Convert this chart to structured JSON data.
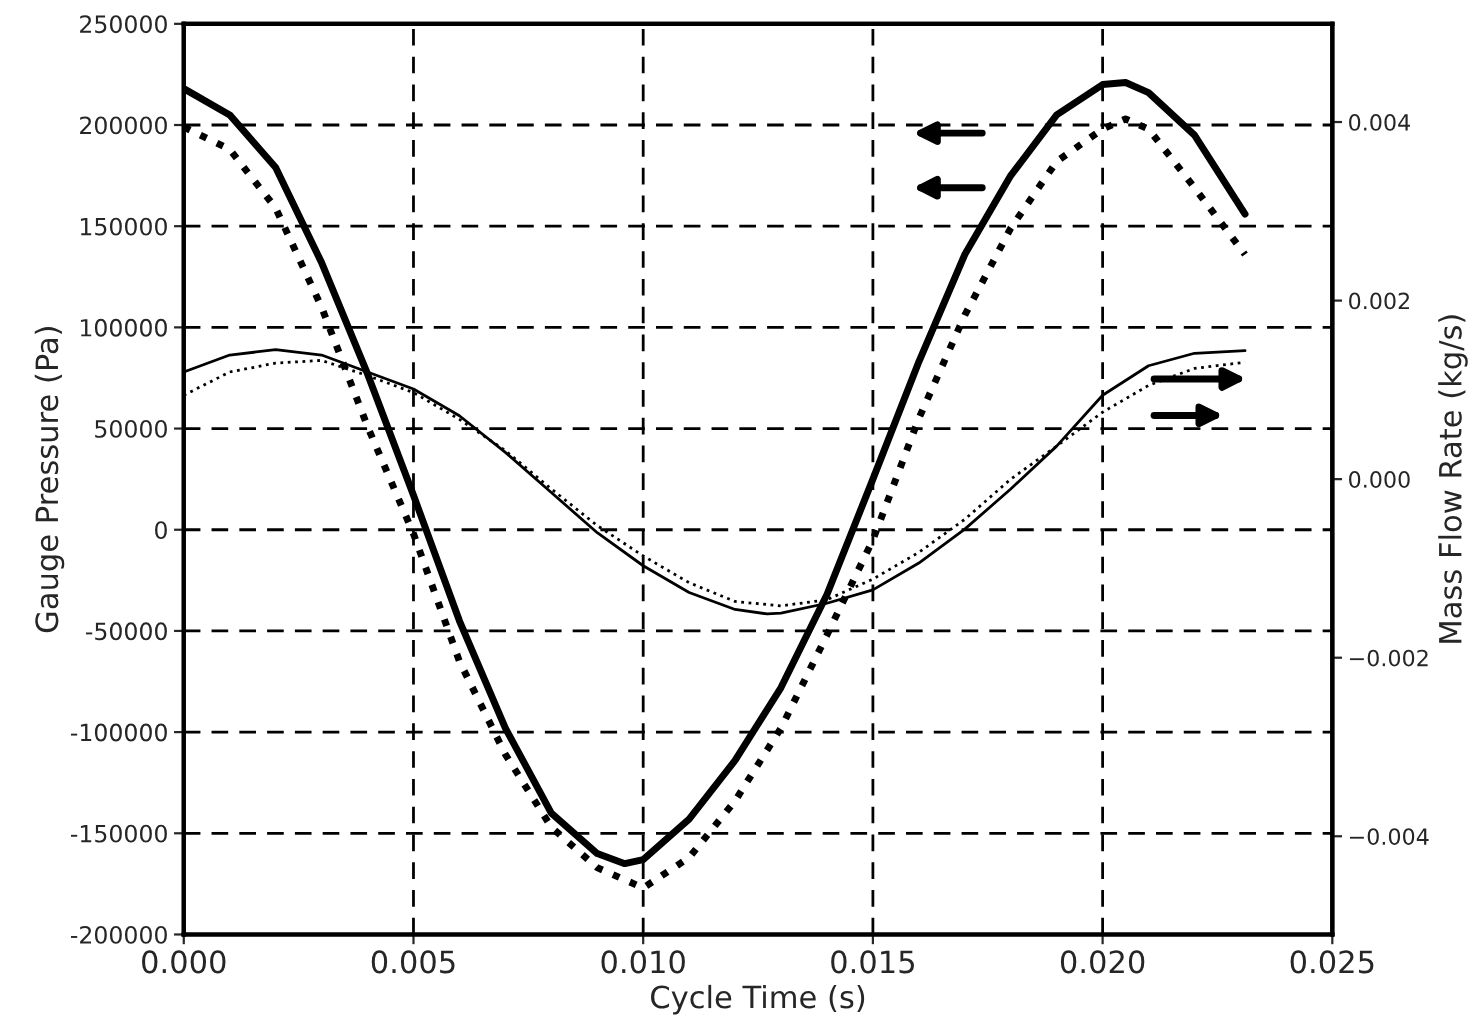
{
  "chart_data": {
    "type": "line",
    "xlabel": "Cycle Time (s)",
    "ylabel": "Gauge Pressure (Pa)",
    "y2label": "Mass Flow Rate (kg/s)",
    "xlim": [
      0,
      0.025
    ],
    "xticks": [
      {
        "value": 0,
        "label": "0.000"
      },
      {
        "value": 0.005,
        "label": "0.005"
      },
      {
        "value": 0.01,
        "label": "0.010"
      },
      {
        "value": 0.015,
        "label": "0.015"
      },
      {
        "value": 0.02,
        "label": "0.020"
      },
      {
        "value": 0.025,
        "label": "0.025"
      }
    ],
    "ylim": [
      -200000,
      250000
    ],
    "yticks": [
      {
        "value": -200000,
        "label": "-200000"
      },
      {
        "value": -150000,
        "label": "-150000"
      },
      {
        "value": -100000,
        "label": "-100000"
      },
      {
        "value": -50000,
        "label": "-50000"
      },
      0,
      50000,
      100000,
      150000,
      200000,
      250000
    ],
    "y2lim": [
      -0.0051,
      0.0051
    ],
    "y2ticks": [
      {
        "value": -0.004,
        "label": "−0.004"
      },
      {
        "value": -0.002,
        "label": "−0.002"
      },
      {
        "value": 0,
        "label": "0.000"
      },
      {
        "value": 0.002,
        "label": "0.002"
      },
      {
        "value": 0.004,
        "label": "0.004"
      }
    ],
    "grid": true,
    "marker": "none",
    "series": [
      {
        "color": "#000000",
        "line_style": "solid",
        "x": [
          0,
          0.001,
          0.002,
          0.003,
          0.004,
          0.005,
          0.006,
          0.007,
          0.008,
          0.009,
          0.0096,
          0.01,
          0.011,
          0.012,
          0.013,
          0.014,
          0.015,
          0.016,
          0.017,
          0.018,
          0.019,
          0.02,
          0.0205,
          0.021,
          0.022,
          0.0231
        ],
        "values": [
          218000,
          205000,
          179000,
          132000,
          77000,
          17000,
          -45000,
          -98000,
          -140000,
          -160000,
          -165000,
          -163000,
          -143000,
          -114000,
          -78000,
          -32000,
          25000,
          83000,
          136000,
          175000,
          205000,
          220000,
          221000,
          216000,
          195000,
          156000
        ]
      },
      {
        "color": "#000000",
        "line_style": "dotted",
        "x": [
          0,
          0.001,
          0.002,
          0.003,
          0.004,
          0.005,
          0.006,
          0.007,
          0.008,
          0.009,
          0.01,
          0.011,
          0.012,
          0.013,
          0.014,
          0.015,
          0.016,
          0.017,
          0.018,
          0.019,
          0.02,
          0.0205,
          0.021,
          0.022,
          0.0231
        ],
        "values": [
          199000,
          188000,
          159000,
          110000,
          51000,
          -2000,
          -65000,
          -111000,
          -147000,
          -167000,
          -177000,
          -162000,
          -134000,
          -98000,
          -52000,
          -5000,
          55000,
          106000,
          149000,
          182000,
          198000,
          203000,
          198000,
          169000,
          136000
        ]
      },
      {
        "color": "#000000",
        "line_style": "solid",
        "axis": "y2",
        "x": [
          0,
          0.001,
          0.002,
          0.003,
          0.004,
          0.005,
          0.006,
          0.007,
          0.008,
          0.009,
          0.01,
          0.011,
          0.012,
          0.0127,
          0.013,
          0.014,
          0.015,
          0.016,
          0.017,
          0.018,
          0.019,
          0.02,
          0.021,
          0.022,
          0.0231
        ],
        "values": [
          0.0012,
          0.00139,
          0.00145,
          0.00139,
          0.0012,
          0.00101,
          0.00071,
          0.0003,
          -0.00015,
          -0.0006,
          -0.00097,
          -0.00127,
          -0.00146,
          -0.00151,
          -0.0015,
          -0.00139,
          -0.00124,
          -0.00094,
          -0.00056,
          -0.00011,
          0.00037,
          0.00094,
          0.00127,
          0.00141,
          0.00144
        ]
      },
      {
        "color": "#000000",
        "line_style": "dotted",
        "axis": "y2",
        "x": [
          0,
          0.001,
          0.002,
          0.003,
          0.004,
          0.005,
          0.006,
          0.007,
          0.008,
          0.009,
          0.01,
          0.011,
          0.012,
          0.013,
          0.014,
          0.015,
          0.016,
          0.017,
          0.018,
          0.019,
          0.02,
          0.021,
          0.022,
          0.0231
        ],
        "values": [
          0.00094,
          0.0012,
          0.0013,
          0.00133,
          0.00116,
          0.00097,
          0.00067,
          0.00032,
          -0.00011,
          -0.00052,
          -0.00086,
          -0.00116,
          -0.00137,
          -0.00142,
          -0.00135,
          -0.00112,
          -0.00082,
          -0.00045,
          0.0,
          0.00037,
          0.00075,
          0.00105,
          0.00124,
          0.00131
        ]
      }
    ]
  }
}
